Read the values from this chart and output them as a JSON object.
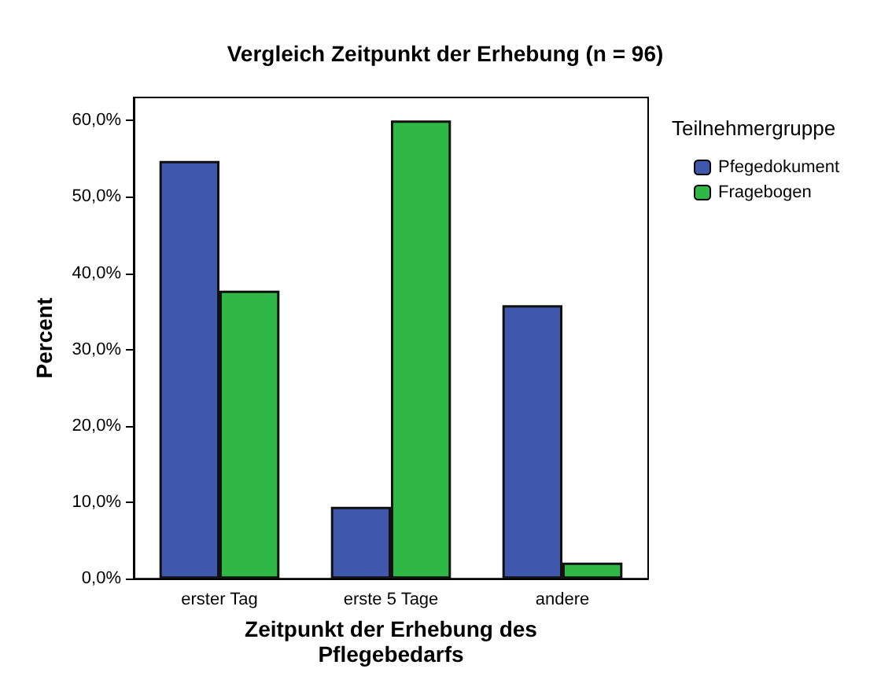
{
  "chart_data": {
    "type": "bar",
    "title": "Vergleich Zeitpunkt der Erhebung (n = 96)",
    "xlabel": "Zeitpunkt der Erhebung des\nPflegebedarfs",
    "ylabel": "Percent",
    "legend_title": "Teilnehmergruppe",
    "legend": "top right",
    "grid": false,
    "categories": [
      "erster Tag",
      "erste 5 Tage",
      "andere"
    ],
    "series": [
      {
        "name": "Pfegedokument",
        "color": "#3f58ab",
        "values": [
          54.7,
          9.4,
          35.8
        ]
      },
      {
        "name": "Fragebogen",
        "color": "#30b846",
        "values": [
          37.7,
          60.0,
          2.1
        ]
      }
    ],
    "ylim": [
      0,
      63
    ],
    "yticks": [
      {
        "value": 0,
        "label": "0,0%"
      },
      {
        "value": 10,
        "label": "10,0%"
      },
      {
        "value": 20,
        "label": "20,0%"
      },
      {
        "value": 30,
        "label": "30,0%"
      },
      {
        "value": 40,
        "label": "40,0%"
      },
      {
        "value": 50,
        "label": "50,0%"
      },
      {
        "value": 60,
        "label": "60,0%"
      }
    ]
  }
}
